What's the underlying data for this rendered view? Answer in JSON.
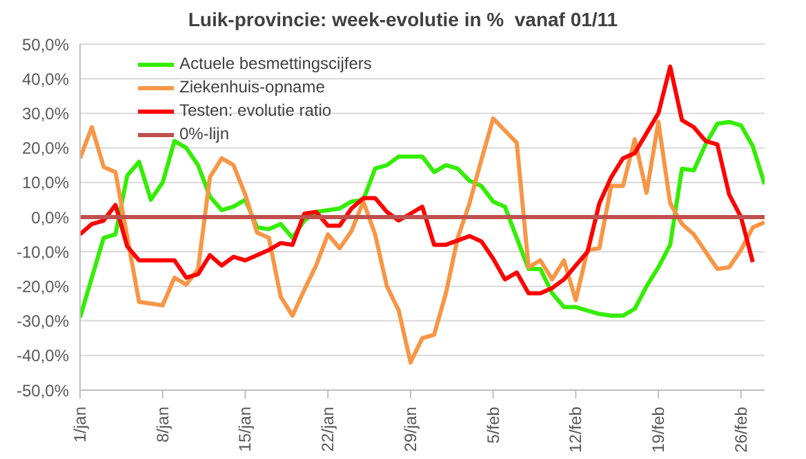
{
  "chart_data": {
    "type": "line",
    "title": "Luik-provincie: week-evolutie in %  vanaf 01/11",
    "xlim": [
      "--01-01",
      "--02-28"
    ],
    "xticks": [
      {
        "value": "--01-01",
        "label": "1/jan"
      },
      {
        "value": "--01-08",
        "label": "8/jan"
      },
      {
        "value": "--01-15",
        "label": "15/jan"
      },
      {
        "value": "--01-22",
        "label": "22/jan"
      },
      {
        "value": "--01-29",
        "label": "29/jan"
      },
      {
        "value": "--02-05",
        "label": "5/feb"
      },
      {
        "value": "--02-12",
        "label": "12/feb"
      },
      {
        "value": "--02-19",
        "label": "19/feb"
      },
      {
        "value": "--02-26",
        "label": "26/feb"
      }
    ],
    "ylim": [
      -50,
      50
    ],
    "yticks": [
      {
        "value": -50,
        "label": "-50,0%"
      },
      {
        "value": -40,
        "label": "-40,0%"
      },
      {
        "value": -30,
        "label": "-30,0%"
      },
      {
        "value": -20,
        "label": "-20,0%"
      },
      {
        "value": -10,
        "label": "-10,0%"
      },
      {
        "value": 0,
        "label": "0,0%"
      },
      {
        "value": 10,
        "label": "10,0%"
      },
      {
        "value": 20,
        "label": "20,0%"
      },
      {
        "value": 30,
        "label": "30,0%"
      },
      {
        "value": 40,
        "label": "40,0%"
      },
      {
        "value": 50,
        "label": "50,0%"
      }
    ],
    "grid": "y",
    "legend": "top left",
    "marker": "none",
    "line_style": "solid",
    "series": [
      {
        "name": "Actuele besmettingscijfers",
        "color": "#33ee00",
        "x": [
          "--01-01",
          "--01-03",
          "--01-04",
          "--01-05",
          "--01-06",
          "--01-07",
          "--01-08",
          "--01-09",
          "--01-10",
          "--01-11",
          "--01-12",
          "--01-13",
          "--01-14",
          "--01-15",
          "--01-16",
          "--01-17",
          "--01-18",
          "--01-19",
          "--01-20",
          "--01-21",
          "--01-22",
          "--01-23",
          "--01-24",
          "--01-25",
          "--01-26",
          "--01-27",
          "--01-28",
          "--01-29",
          "--01-30",
          "--01-31",
          "--02-01",
          "--02-02",
          "--02-03",
          "--02-04",
          "--02-05",
          "--02-06",
          "--02-07",
          "--02-08",
          "--02-09",
          "--02-10",
          "--02-11",
          "--02-12",
          "--02-13",
          "--02-14",
          "--02-15",
          "--02-16",
          "--02-17",
          "--02-18",
          "--02-19",
          "--02-20",
          "--02-21",
          "--02-22",
          "--02-23",
          "--02-24",
          "--02-25",
          "--02-26",
          "--02-27",
          "--02-28"
        ],
        "values": [
          -29,
          -6,
          -5,
          12,
          16,
          5,
          10,
          22,
          20,
          15,
          6,
          2,
          3,
          5,
          -3,
          -3.5,
          -2,
          -6,
          -1,
          1.5,
          2,
          2.5,
          4.5,
          5,
          14,
          15,
          17.5,
          17.5,
          17.5,
          13,
          15,
          14,
          10.5,
          9,
          4.5,
          3,
          -6,
          -15,
          -15,
          -22,
          -26,
          -26,
          -27,
          -28,
          -28.5,
          -28.5,
          -26.5,
          -20,
          -14.5,
          -8,
          14,
          13.5,
          21,
          27,
          27.5,
          26.5,
          20.5,
          9.5
        ]
      },
      {
        "name": "Ziekenhuis-opname",
        "color": "#f79646",
        "x": [
          "--01-01",
          "--01-02",
          "--01-03",
          "--01-04",
          "--01-06",
          "--01-07",
          "--01-08",
          "--01-09",
          "--01-10",
          "--01-11",
          "--01-12",
          "--01-13",
          "--01-14",
          "--01-15",
          "--01-16",
          "--01-17",
          "--01-18",
          "--01-19",
          "--01-20",
          "--01-21",
          "--01-22",
          "--01-23",
          "--01-24",
          "--01-25",
          "--01-26",
          "--01-27",
          "--01-28",
          "--01-29",
          "--01-30",
          "--01-31",
          "--02-01",
          "--02-02",
          "--02-03",
          "--02-04",
          "--02-05",
          "--02-06",
          "--02-07",
          "--02-08",
          "--02-09",
          "--02-10",
          "--02-11",
          "--02-12",
          "--02-13",
          "--02-14",
          "--02-15",
          "--02-16",
          "--02-17",
          "--02-18",
          "--02-19",
          "--02-20",
          "--02-21",
          "--02-22",
          "--02-23",
          "--02-24",
          "--02-25",
          "--02-26",
          "--02-27",
          "--02-28"
        ],
        "values": [
          17,
          26,
          14.5,
          13,
          -24.5,
          -25,
          -25.5,
          -17.5,
          -19.5,
          -15,
          11.5,
          17,
          15,
          6.5,
          -4.5,
          -6,
          -23,
          -28.5,
          -21,
          -14,
          -5,
          -9,
          -4,
          4.5,
          -5,
          -20,
          -27,
          -42,
          -35,
          -34,
          -22,
          -6,
          4,
          16.5,
          28.5,
          25,
          21.5,
          -14.5,
          -12.5,
          -18,
          -12.5,
          -24,
          -9.5,
          -9,
          9,
          9,
          22.5,
          7,
          27.5,
          4,
          -2,
          -5,
          -10,
          -15,
          -14.5,
          -9.5,
          -3,
          -1.5
        ]
      },
      {
        "name": "Testen: evolutie ratio",
        "color": "#ff0000",
        "x": [
          "--01-01",
          "--01-02",
          "--01-03",
          "--01-04",
          "--01-05",
          "--01-06",
          "--01-07",
          "--01-08",
          "--01-09",
          "--01-10",
          "--01-11",
          "--01-12",
          "--01-13",
          "--01-14",
          "--01-15",
          "--01-16",
          "--01-17",
          "--01-18",
          "--01-19",
          "--01-20",
          "--01-21",
          "--01-22",
          "--01-23",
          "--01-24",
          "--01-25",
          "--01-26",
          "--01-27",
          "--01-28",
          "--01-29",
          "--01-30",
          "--01-31",
          "--02-01",
          "--02-03",
          "--02-04",
          "--02-05",
          "--02-06",
          "--02-07",
          "--02-08",
          "--02-09",
          "--02-10",
          "--02-11",
          "--02-12",
          "--02-13",
          "--02-14",
          "--02-15",
          "--02-16",
          "--02-17",
          "--02-19",
          "--02-20",
          "--02-21",
          "--02-22",
          "--02-23",
          "--02-24",
          "--02-25",
          "--02-26",
          "--02-27"
        ],
        "values": [
          -5,
          -2,
          -1,
          3.5,
          -8.5,
          -12.5,
          -12.5,
          -12.5,
          -12.5,
          -17.5,
          -16.5,
          -11,
          -14,
          -11.5,
          -12.5,
          -11,
          -9.5,
          -7.5,
          -8,
          1,
          1.5,
          -2.5,
          -2.5,
          2.5,
          5.5,
          5.5,
          1.5,
          -1,
          1,
          3,
          -8,
          -8,
          -5.5,
          -7,
          -12,
          -18,
          -16,
          -22,
          -22,
          -20.5,
          -18,
          -14,
          -10,
          4,
          11.5,
          17,
          18.5,
          30,
          43.5,
          28,
          26,
          22,
          21,
          6.5,
          0,
          -13
        ]
      },
      {
        "name": "0%-lijn",
        "color": "#c0504d",
        "x": [
          "--01-01",
          "--02-28"
        ],
        "values": [
          0,
          0
        ]
      }
    ]
  }
}
